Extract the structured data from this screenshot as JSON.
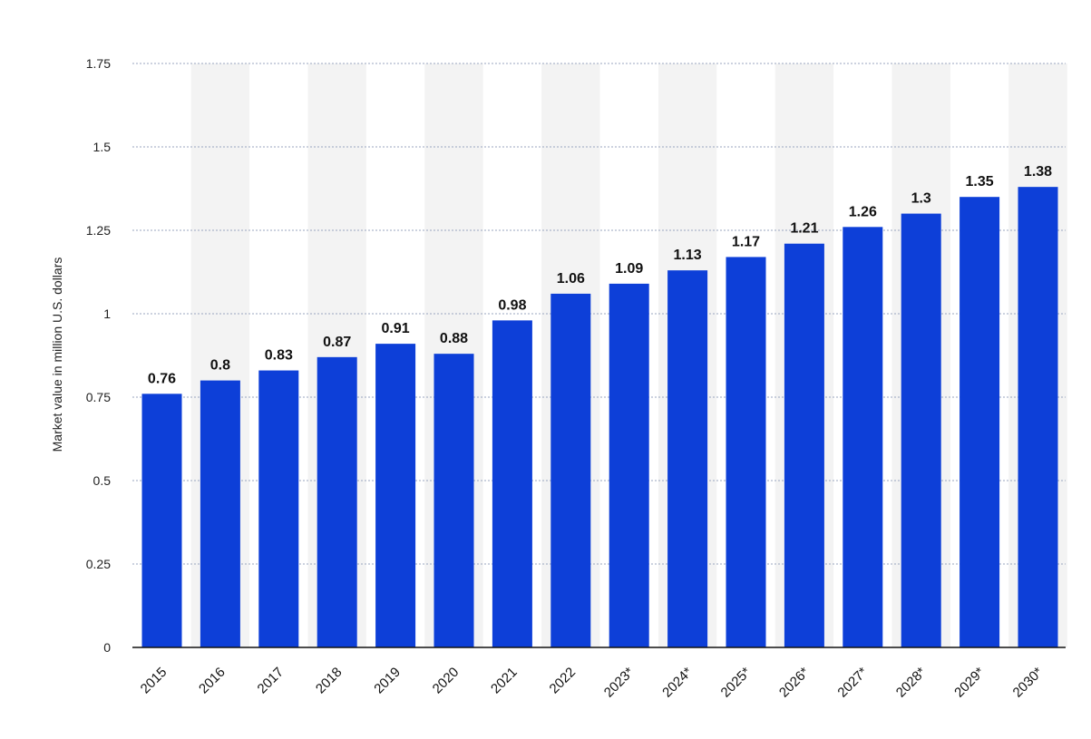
{
  "chart_data": {
    "type": "bar",
    "ylabel": "Market value in million U.S. dollars",
    "xlabel": "",
    "title": "",
    "categories": [
      "2015",
      "2016",
      "2017",
      "2018",
      "2019",
      "2020",
      "2021",
      "2022",
      "2023*",
      "2024*",
      "2025*",
      "2026*",
      "2027*",
      "2028*",
      "2029*",
      "2030*"
    ],
    "values": [
      0.76,
      0.8,
      0.83,
      0.87,
      0.91,
      0.88,
      0.98,
      1.06,
      1.09,
      1.13,
      1.17,
      1.21,
      1.26,
      1.3,
      1.35,
      1.38
    ],
    "data_labels": [
      "0.76",
      "0.8",
      "0.83",
      "0.87",
      "0.91",
      "0.88",
      "0.98",
      "1.06",
      "1.09",
      "1.13",
      "1.17",
      "1.21",
      "1.26",
      "1.3",
      "1.35",
      "1.38"
    ],
    "yticks": [
      0,
      0.25,
      0.5,
      0.75,
      1,
      1.25,
      1.5,
      1.75
    ],
    "ytick_labels": [
      "0",
      "0.25",
      "0.5",
      "0.75",
      "1",
      "1.25",
      "1.5",
      "1.75"
    ],
    "ylim": [
      0,
      1.75
    ],
    "grid": true,
    "bar_color": "#0d3fd8",
    "grid_color": "#9aa6bf",
    "band_color": "#f3f3f3",
    "axis_color": "#111111"
  }
}
